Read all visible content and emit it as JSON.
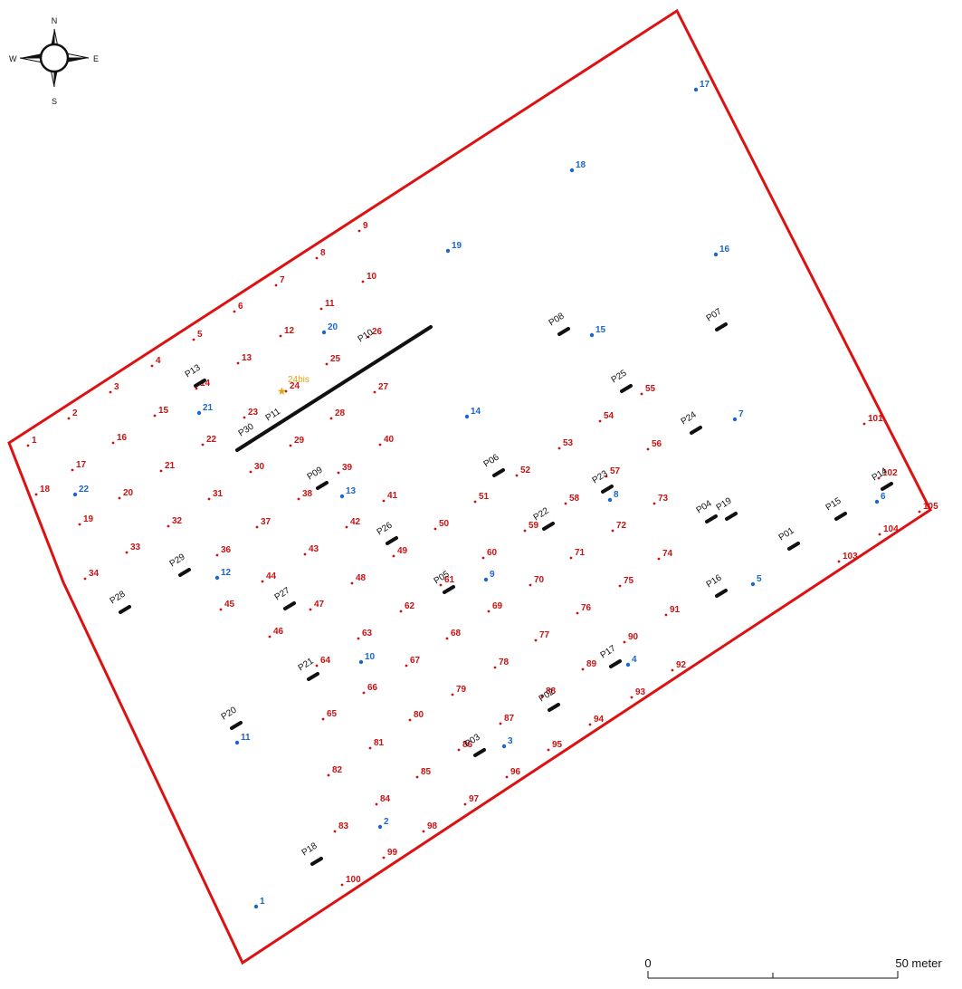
{
  "compass": {
    "n": "N",
    "s": "S",
    "e": "E",
    "w": "W"
  },
  "scale": {
    "zero": "0",
    "end": "50 meter"
  },
  "colors": {
    "boundary": "#dd1111",
    "red": "#cc1111",
    "blue": "#1a66cc",
    "black": "#111111",
    "gold": "#e8a010"
  },
  "red_labels": [
    "1",
    "2",
    "3",
    "4",
    "5",
    "6",
    "7",
    "8",
    "9",
    "10",
    "11",
    "12",
    "13",
    "14",
    "15",
    "16",
    "17",
    "18",
    "19",
    "20",
    "21",
    "22",
    "23",
    "24",
    "25",
    "26",
    "27",
    "28",
    "29",
    "30",
    "31",
    "32",
    "33",
    "34",
    "36",
    "37",
    "38",
    "39",
    "40",
    "41",
    "42",
    "43",
    "44",
    "45",
    "46",
    "47",
    "48",
    "49",
    "50",
    "51",
    "52",
    "53",
    "54",
    "55",
    "56",
    "57",
    "58",
    "59",
    "60",
    "61",
    "62",
    "63",
    "64",
    "65",
    "66",
    "67",
    "68",
    "69",
    "70",
    "71",
    "72",
    "73",
    "74",
    "75",
    "76",
    "77",
    "78",
    "79",
    "80",
    "81",
    "82",
    "83",
    "84",
    "85",
    "86",
    "87",
    "88",
    "89",
    "90",
    "91",
    "92",
    "93",
    "94",
    "95",
    "96",
    "97",
    "98",
    "99",
    "100",
    "101",
    "102",
    "103",
    "104",
    "105"
  ],
  "blue_labels": [
    "1",
    "2",
    "3",
    "4",
    "5",
    "6",
    "7",
    "8",
    "9",
    "10",
    "11",
    "12",
    "13",
    "14",
    "15",
    "16",
    "17",
    "18",
    "19",
    "20",
    "21",
    "22"
  ],
  "plot_labels": [
    "P01",
    "P02",
    "P03",
    "P04",
    "P05",
    "P06",
    "P07",
    "P08",
    "P09",
    "P10",
    "P11",
    "P13",
    "P14",
    "P15",
    "P16",
    "P17",
    "P18",
    "P19",
    "P20",
    "P21",
    "P22",
    "P23",
    "P24",
    "P25",
    "P26",
    "P27",
    "P28",
    "P29",
    "P30"
  ],
  "star_label": "24bis"
}
